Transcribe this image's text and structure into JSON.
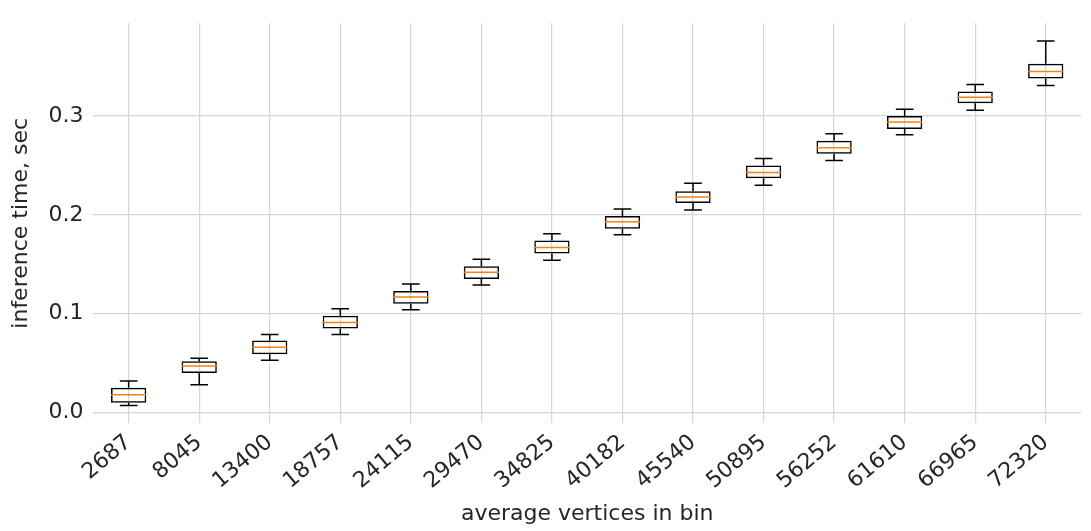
{
  "chart_data": {
    "type": "box",
    "xlabel": "average vertices in bin",
    "ylabel": "inference time, sec",
    "categories": [
      "2687",
      "8045",
      "13400",
      "18757",
      "24115",
      "29470",
      "34825",
      "40182",
      "45540",
      "50895",
      "56252",
      "61610",
      "66965",
      "72320"
    ],
    "boxes": [
      {
        "low": 0.007,
        "q1": 0.01,
        "median": 0.018,
        "q3": 0.025,
        "high": 0.032
      },
      {
        "low": 0.028,
        "q1": 0.04,
        "median": 0.047,
        "q3": 0.052,
        "high": 0.055
      },
      {
        "low": 0.053,
        "q1": 0.059,
        "median": 0.066,
        "q3": 0.073,
        "high": 0.079
      },
      {
        "low": 0.079,
        "q1": 0.085,
        "median": 0.091,
        "q3": 0.098,
        "high": 0.105
      },
      {
        "low": 0.104,
        "q1": 0.11,
        "median": 0.117,
        "q3": 0.123,
        "high": 0.13
      },
      {
        "low": 0.129,
        "q1": 0.135,
        "median": 0.142,
        "q3": 0.148,
        "high": 0.155
      },
      {
        "low": 0.154,
        "q1": 0.161,
        "median": 0.167,
        "q3": 0.174,
        "high": 0.181
      },
      {
        "low": 0.18,
        "q1": 0.186,
        "median": 0.193,
        "q3": 0.199,
        "high": 0.206
      },
      {
        "low": 0.205,
        "q1": 0.212,
        "median": 0.218,
        "q3": 0.224,
        "high": 0.232
      },
      {
        "low": 0.23,
        "q1": 0.237,
        "median": 0.243,
        "q3": 0.25,
        "high": 0.257
      },
      {
        "low": 0.255,
        "q1": 0.262,
        "median": 0.268,
        "q3": 0.275,
        "high": 0.282
      },
      {
        "low": 0.281,
        "q1": 0.287,
        "median": 0.294,
        "q3": 0.3,
        "high": 0.307
      },
      {
        "low": 0.306,
        "q1": 0.313,
        "median": 0.319,
        "q3": 0.325,
        "high": 0.332
      },
      {
        "low": 0.331,
        "q1": 0.338,
        "median": 0.345,
        "q3": 0.353,
        "high": 0.376
      }
    ],
    "ylim": [
      -0.011,
      0.394
    ],
    "yticks": [
      {
        "value": 0,
        "label": "0.0"
      },
      0.1,
      0.2,
      0.3
    ],
    "grid": true
  }
}
